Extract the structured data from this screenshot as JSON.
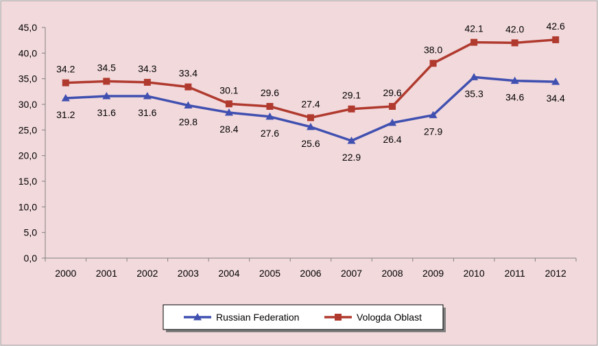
{
  "chart_data": {
    "type": "line",
    "title": "",
    "xlabel": "",
    "ylabel": "",
    "ylim": [
      0,
      45
    ],
    "yticks": [
      "0,0",
      "5,0",
      "10,0",
      "15,0",
      "20,0",
      "25,0",
      "30,0",
      "35,0",
      "40,0",
      "45,0"
    ],
    "categories": [
      "2000",
      "2001",
      "2002",
      "2003",
      "2004",
      "2005",
      "2006",
      "2007",
      "2008",
      "2009",
      "2010",
      "2011",
      "2012"
    ],
    "grid": false,
    "legend_position": "bottom",
    "series": [
      {
        "name": "Russian Federation",
        "color": "#4050b0",
        "marker": "triangle",
        "values": [
          31.2,
          31.6,
          31.6,
          29.8,
          28.4,
          27.6,
          25.6,
          22.9,
          26.4,
          27.9,
          35.3,
          34.6,
          34.4
        ],
        "labels": [
          "31.2",
          "31.6",
          "31.6",
          "29.8",
          "28.4",
          "27.6",
          "25.6",
          "22.9",
          "26.4",
          "27.9",
          "35.3",
          "34.6",
          "34.4"
        ]
      },
      {
        "name": "Vologda Oblast",
        "color": "#b03a2e",
        "marker": "square",
        "values": [
          34.2,
          34.5,
          34.3,
          33.4,
          30.1,
          29.6,
          27.4,
          29.1,
          29.6,
          38.0,
          42.1,
          42.0,
          42.6
        ],
        "labels": [
          "34.2",
          "34.5",
          "34.3",
          "33.4",
          "30.1",
          "29.6",
          "27.4",
          "29.1",
          "29.6",
          "38.0",
          "42.1",
          "42.0",
          "42.6"
        ]
      }
    ],
    "colors": {
      "plot_background": "#f2d9dc",
      "border": "#9a9a9a",
      "axis": "#808080"
    }
  }
}
